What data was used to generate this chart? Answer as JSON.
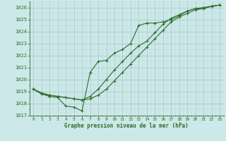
{
  "background_color": "#cce8e8",
  "grid_major_color": "#aacccc",
  "grid_minor_color": "#bcd8d8",
  "line_color": "#2d6e2d",
  "xlabel": "Graphe pression niveau de la mer (hPa)",
  "ylim": [
    1017.0,
    1026.5
  ],
  "xlim": [
    -0.5,
    23.5
  ],
  "yticks": [
    1017,
    1018,
    1019,
    1020,
    1021,
    1022,
    1023,
    1024,
    1025,
    1026
  ],
  "xticks": [
    0,
    1,
    2,
    3,
    4,
    5,
    6,
    7,
    8,
    9,
    10,
    11,
    12,
    13,
    14,
    15,
    16,
    17,
    18,
    19,
    20,
    21,
    22,
    23
  ],
  "series1_x": [
    0,
    1,
    2,
    3,
    4,
    5,
    6,
    7,
    8,
    9,
    10,
    11,
    12,
    13,
    14,
    15,
    16,
    17,
    18,
    19,
    20,
    21,
    22,
    23
  ],
  "series1_y": [
    1019.2,
    1018.8,
    1018.6,
    1018.5,
    1017.8,
    1017.7,
    1017.4,
    1020.6,
    1021.5,
    1021.6,
    1022.2,
    1022.5,
    1023.0,
    1024.5,
    1024.7,
    1024.7,
    1024.8,
    1025.0,
    1025.3,
    1025.7,
    1025.9,
    1025.9,
    1026.1,
    1026.2
  ],
  "series2_x": [
    0,
    1,
    2,
    3,
    4,
    5,
    6,
    7,
    8,
    9,
    10,
    11,
    12,
    13,
    14,
    15,
    16,
    17,
    18,
    19,
    20,
    21,
    22,
    23
  ],
  "series2_y": [
    1019.2,
    1018.8,
    1018.7,
    1018.6,
    1018.5,
    1018.4,
    1018.3,
    1018.6,
    1019.2,
    1020.0,
    1020.8,
    1021.5,
    1022.2,
    1022.8,
    1023.2,
    1023.9,
    1024.6,
    1025.1,
    1025.4,
    1025.7,
    1025.9,
    1026.0,
    1026.1,
    1026.2
  ],
  "series3_x": [
    0,
    1,
    2,
    3,
    4,
    5,
    6,
    7,
    8,
    9,
    10,
    11,
    12,
    13,
    14,
    15,
    16,
    17,
    18,
    19,
    20,
    21,
    22,
    23
  ],
  "series3_y": [
    1019.2,
    1018.9,
    1018.7,
    1018.6,
    1018.5,
    1018.4,
    1018.3,
    1018.4,
    1018.7,
    1019.2,
    1019.9,
    1020.6,
    1021.3,
    1022.0,
    1022.7,
    1023.4,
    1024.1,
    1024.8,
    1025.2,
    1025.5,
    1025.8,
    1025.9,
    1026.1,
    1026.2
  ]
}
